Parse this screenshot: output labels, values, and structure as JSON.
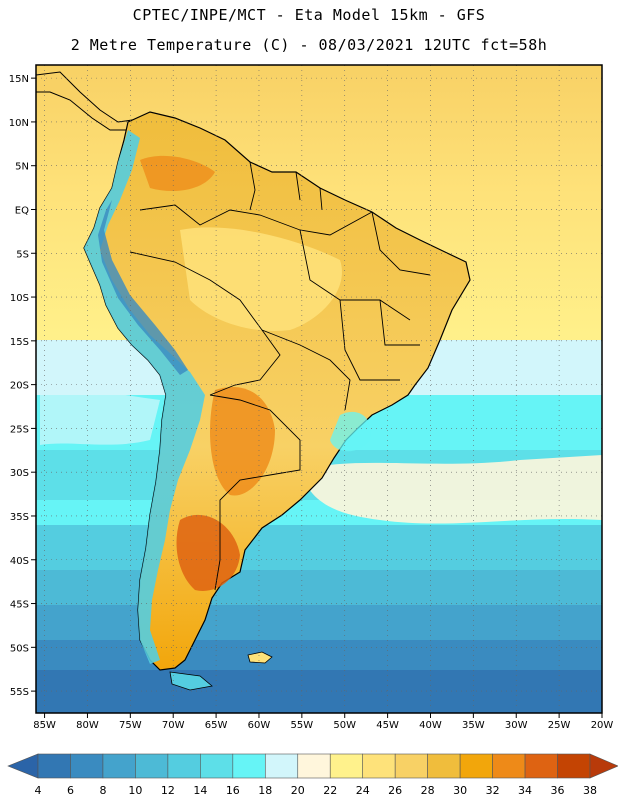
{
  "header": {
    "line1": "CPTEC/INPE/MCT -  Eta Model 15km - GFS",
    "line2": "2 Metre Temperature (C) - 08/03/2021 12UTC fct=58h"
  },
  "map": {
    "region": "South America",
    "lat_labels": [
      "15N",
      "10N",
      "5N",
      "EQ",
      "5S",
      "10S",
      "15S",
      "20S",
      "25S",
      "30S",
      "35S",
      "40S",
      "45S",
      "50S",
      "55S"
    ],
    "lon_labels": [
      "85W",
      "80W",
      "75W",
      "70W",
      "65W",
      "60W",
      "55W",
      "50W",
      "45W",
      "40W",
      "35W",
      "30W",
      "25W",
      "20W"
    ],
    "lat_range": [
      -57.5,
      16.5
    ],
    "lon_range": [
      -86,
      -20
    ]
  },
  "colorbar": {
    "ticks": [
      "4",
      "6",
      "8",
      "10",
      "12",
      "14",
      "16",
      "18",
      "20",
      "22",
      "24",
      "26",
      "28",
      "30",
      "32",
      "34",
      "36",
      "38"
    ],
    "colors": [
      "#2b64a8",
      "#3277b3",
      "#3a8bc0",
      "#44a3cc",
      "#4dbad6",
      "#54cde0",
      "#5ddfe8",
      "#66f4f6",
      "#d2f6fb",
      "#fff6dc",
      "#fff28c",
      "#fee27a",
      "#f8d165",
      "#f0bd3c",
      "#f2a60b",
      "#ee8a18",
      "#de6312",
      "#c44403",
      "#b83a0a"
    ]
  }
}
